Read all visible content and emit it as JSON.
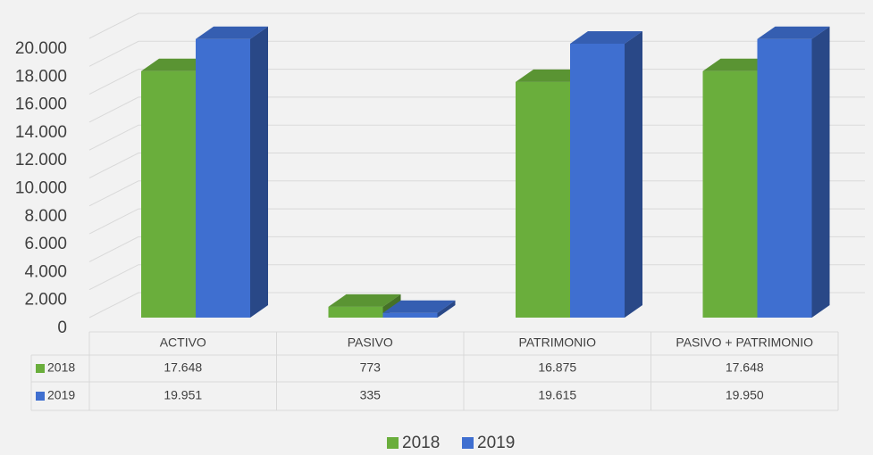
{
  "chart_data": {
    "type": "bar3d",
    "categories": [
      "ACTIVO",
      "PASIVO",
      "PATRIMONIO",
      "PASIVO + PATRIMONIO"
    ],
    "series": [
      {
        "name": "2018",
        "color": "#6aae3c",
        "values": [
          17648,
          773,
          16875,
          17648
        ],
        "value_labels": [
          "17.648",
          "773",
          "16.875",
          "17.648"
        ]
      },
      {
        "name": "2019",
        "color": "#3f6fd0",
        "values": [
          19951,
          335,
          19615,
          19950
        ],
        "value_labels": [
          "19.951",
          "335",
          "19.615",
          "19.950"
        ]
      }
    ],
    "ylim": [
      0,
      20000
    ],
    "yticks": [
      0,
      {
        "value": 2000,
        "label": "2.000"
      },
      {
        "value": 4000,
        "label": "4.000"
      },
      {
        "value": 6000,
        "label": "6.000"
      },
      {
        "value": 8000,
        "label": "8.000"
      },
      {
        "value": 10000,
        "label": "10.000"
      },
      {
        "value": 12000,
        "label": "12.000"
      },
      {
        "value": 14000,
        "label": "14.000"
      },
      {
        "value": 16000,
        "label": "16.000"
      },
      {
        "value": 18000,
        "label": "18.000"
      },
      {
        "value": 20000,
        "label": "20.000"
      }
    ],
    "grid": true,
    "legend": "bottom",
    "data_table": true
  }
}
